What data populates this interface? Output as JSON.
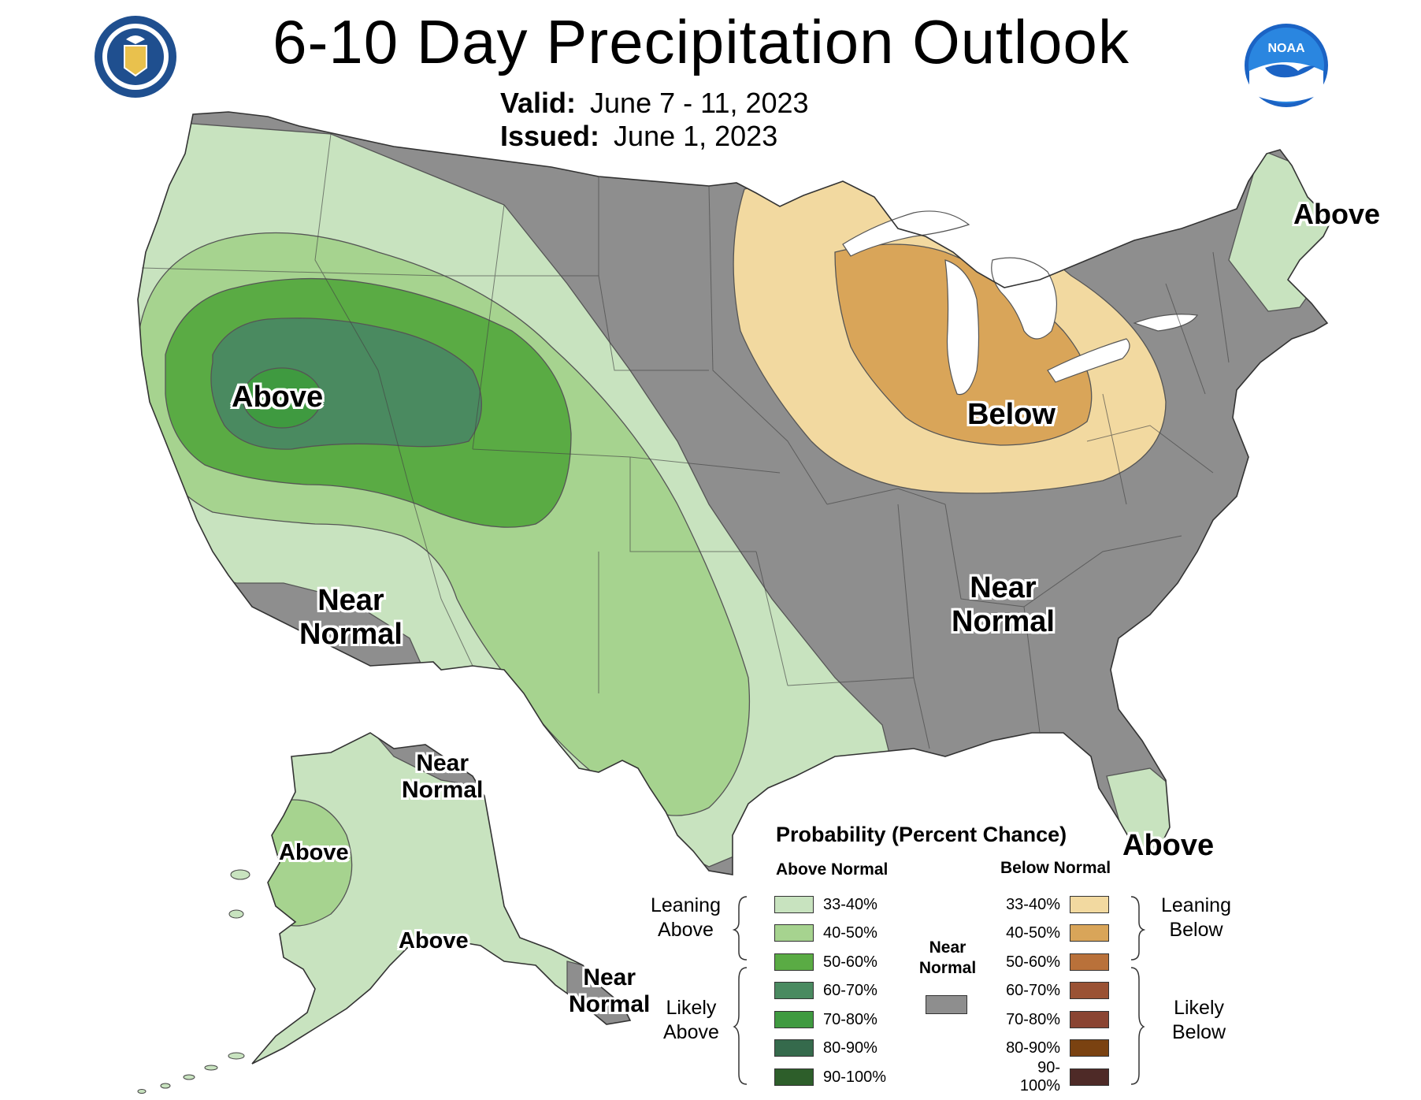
{
  "header": {
    "title": "6-10 Day Precipitation Outlook",
    "valid_label": "Valid:",
    "valid_value": "June 7 - 11, 2023",
    "issued_label": "Issued:",
    "issued_value": "June 1, 2023",
    "left_logo_icon": "department-of-commerce-seal-icon",
    "right_logo_icon": "noaa-logo-icon",
    "noaa_text": "NOAA"
  },
  "colors": {
    "above_33_40": "#c8e3bf",
    "above_40_50": "#a6d38f",
    "above_50_60": "#5aab44",
    "above_60_70": "#4a8a60",
    "above_70_80": "#3f9a40",
    "above_80_90": "#356a4c",
    "above_90_100": "#2d5e2a",
    "near_normal": "#8e8e8e",
    "below_33_40": "#f2d9a0",
    "below_40_50": "#d9a559",
    "below_50_60": "#b9713a",
    "below_60_70": "#9a5234",
    "below_70_80": "#8a4432",
    "below_80_90": "#7a4211",
    "below_90_100": "#4e2a27",
    "water": "#ffffff"
  },
  "map_labels": {
    "west_above": "Above",
    "southwest_near_normal": "Near\nNormal",
    "great_lakes_below": "Below",
    "east_near_normal": "Near\nNormal",
    "maine_above": "Above",
    "florida_above": "Above",
    "alaska_north_near_normal": "Near\nNormal",
    "alaska_west_above": "Above",
    "alaska_south_above": "Above",
    "alaska_southeast_near_normal": "Near\nNormal"
  },
  "legend": {
    "title": "Probability (Percent Chance)",
    "above_header": "Above Normal",
    "below_header": "Below Normal",
    "near_normal_label": "Near\nNormal",
    "leaning_above": "Leaning\nAbove",
    "likely_above": "Likely\nAbove",
    "leaning_below": "Leaning\nBelow",
    "likely_below": "Likely\nBelow",
    "above_categories": [
      "33-40%",
      "40-50%",
      "50-60%",
      "60-70%",
      "70-80%",
      "80-90%",
      "90-100%"
    ],
    "below_categories": [
      "33-40%",
      "40-50%",
      "50-60%",
      "60-70%",
      "70-80%",
      "80-90%",
      "90-100%"
    ]
  }
}
